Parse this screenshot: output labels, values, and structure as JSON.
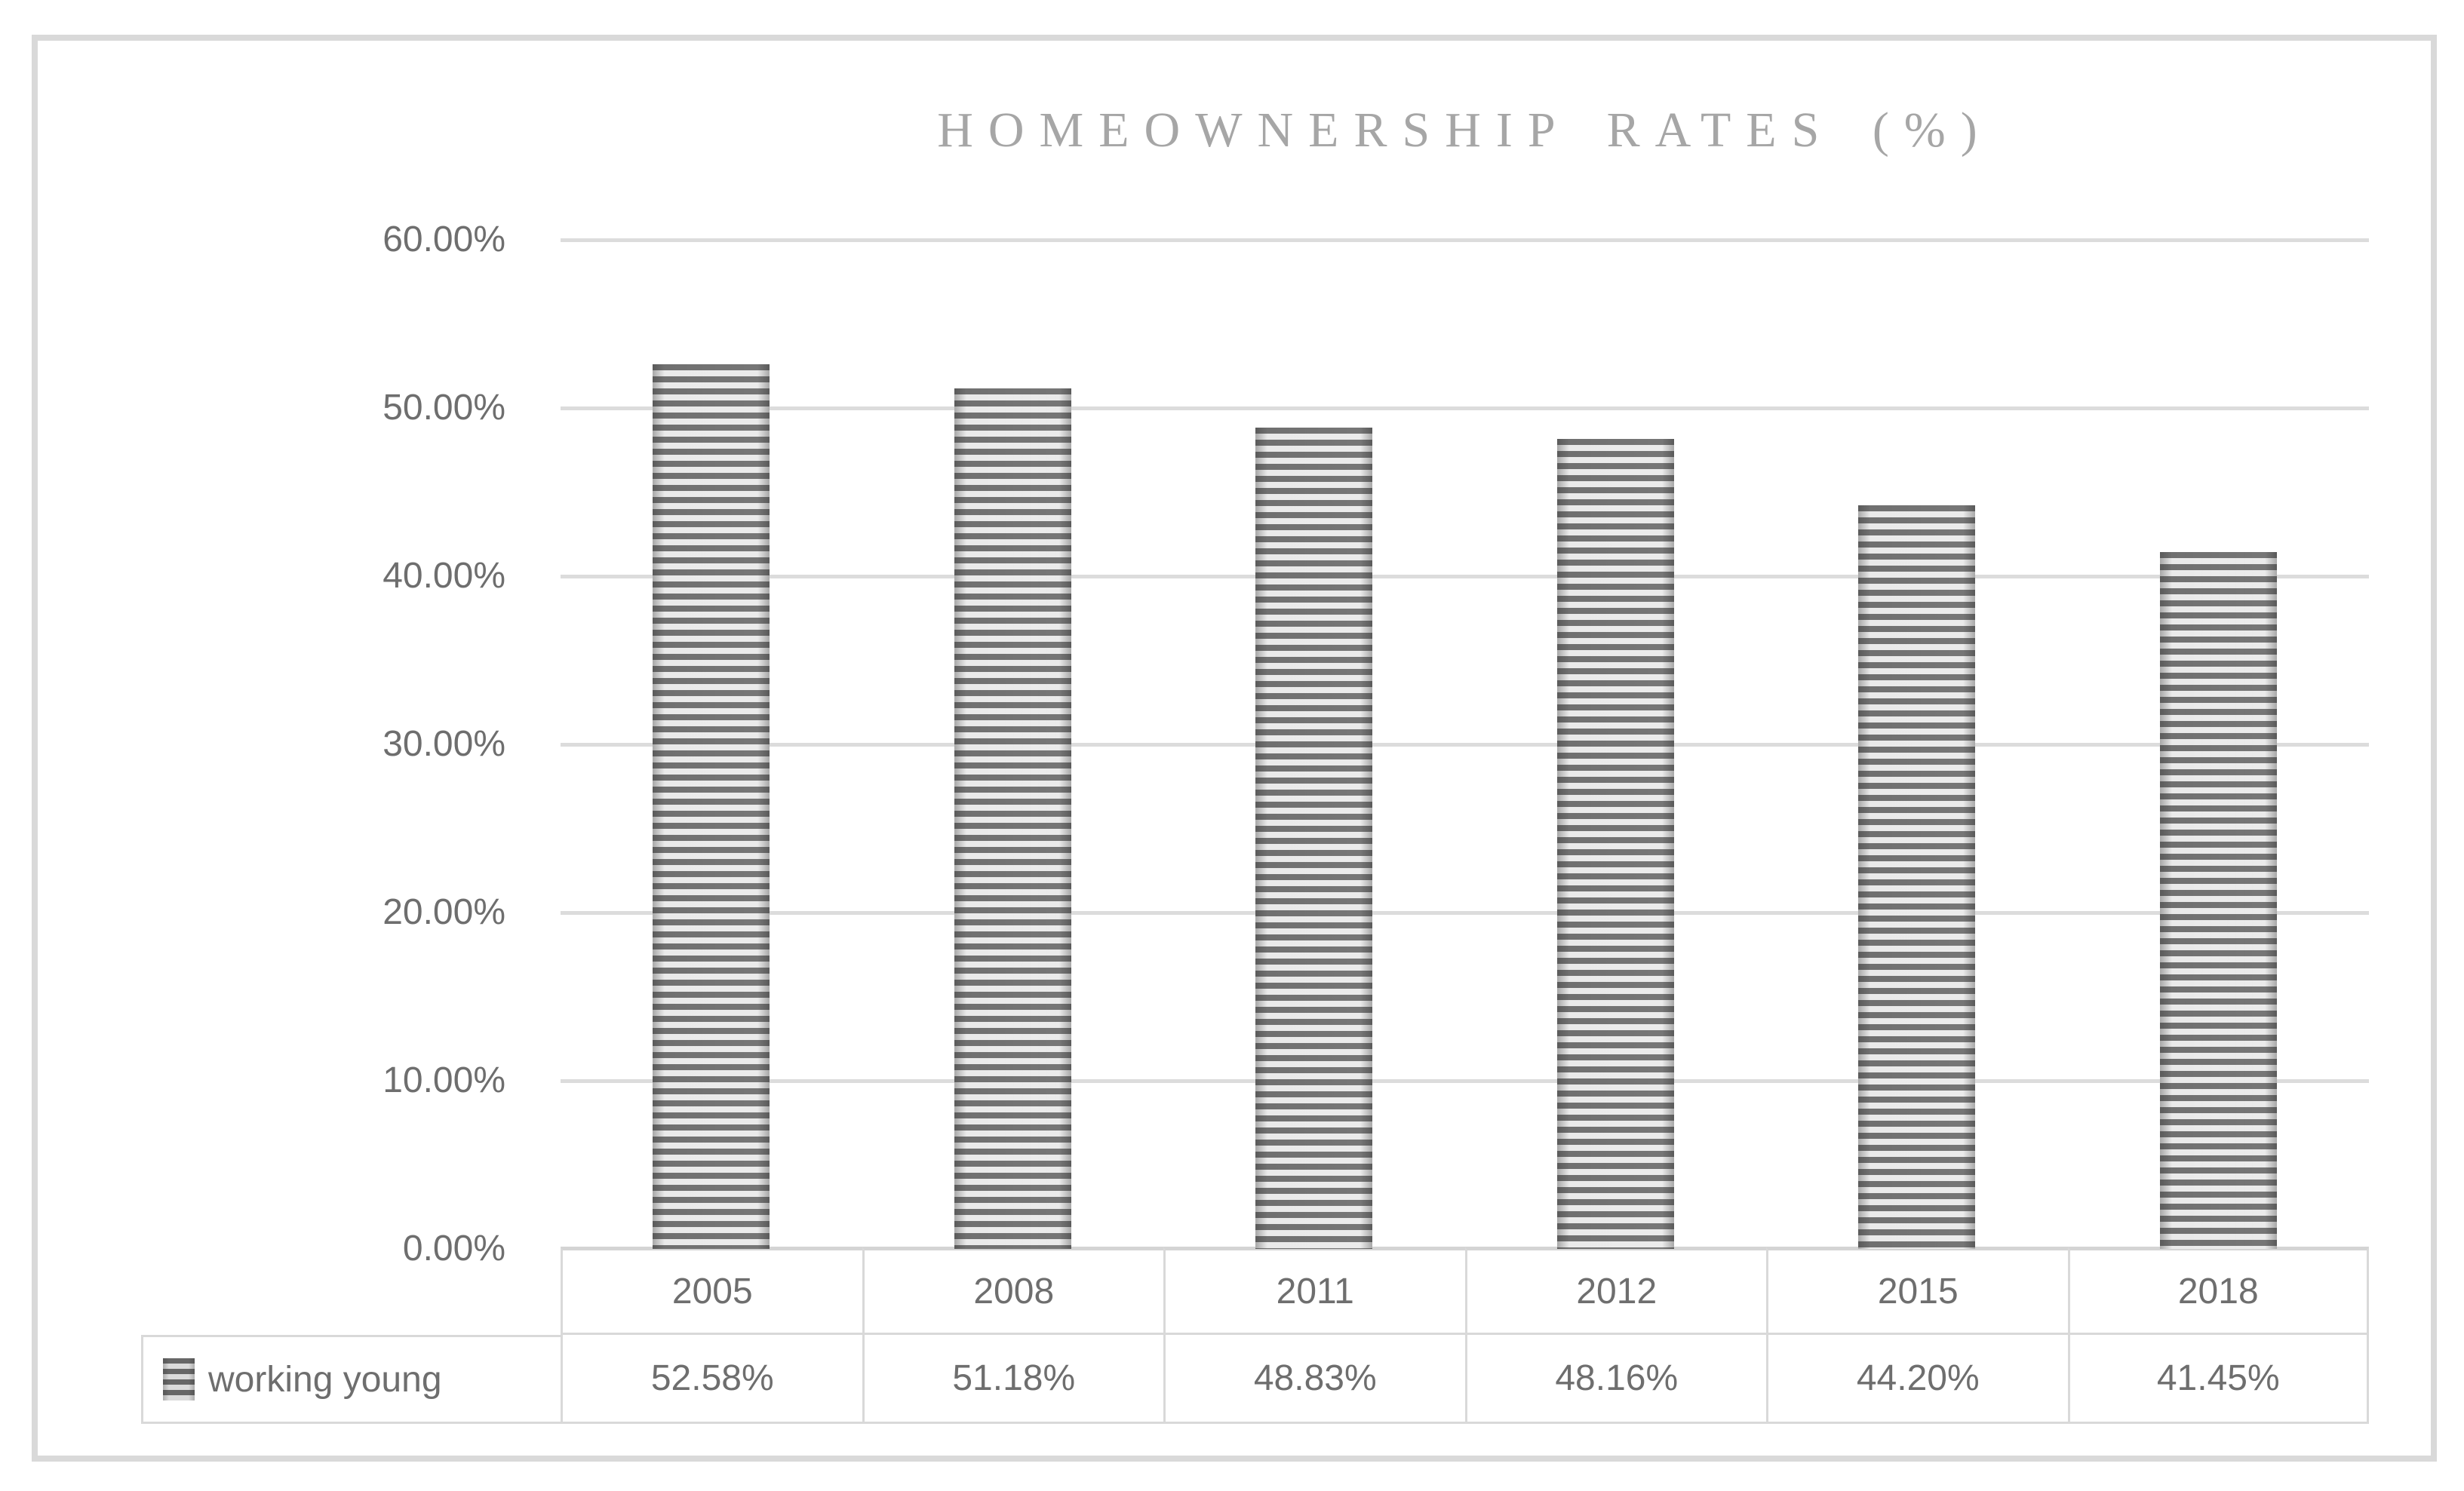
{
  "chart_data": {
    "type": "bar",
    "title": "HOMEOWNERSHIP RATES (%)",
    "categories": [
      "2005",
      "2008",
      "2011",
      "2012",
      "2015",
      "2018"
    ],
    "series": [
      {
        "name": "working young",
        "values": [
          52.58,
          51.18,
          48.83,
          48.16,
          44.2,
          41.45
        ],
        "value_labels": [
          "52.58%",
          "51.18%",
          "48.83%",
          "48.16%",
          "44.20%",
          "41.45%"
        ]
      }
    ],
    "xlabel": "",
    "ylabel": "",
    "ylim": [
      0,
      60
    ],
    "yticks": [
      {
        "value": 0,
        "label": "0.00%"
      },
      {
        "value": 10,
        "label": "10.00%"
      },
      {
        "value": 20,
        "label": "20.00%"
      },
      {
        "value": 30,
        "label": "30.00%"
      },
      {
        "value": 40,
        "label": "40.00%"
      },
      {
        "value": 50,
        "label": "50.00%"
      },
      {
        "value": 60,
        "label": "60.00%"
      }
    ],
    "grid": true,
    "legend_position": "bottom-table",
    "bar_pattern": "horizontal-stripes",
    "colors": {
      "bar_stripe_dark": "#676767",
      "bar_stripe_light": "#e9e9e9",
      "gridline": "#dcdcdc",
      "axis_text": "#6e6e6e",
      "title_text": "#a6a6a6",
      "table_border": "#d9d9d9",
      "frame_border": "#d9d9d9",
      "background": "#ffffff"
    }
  }
}
